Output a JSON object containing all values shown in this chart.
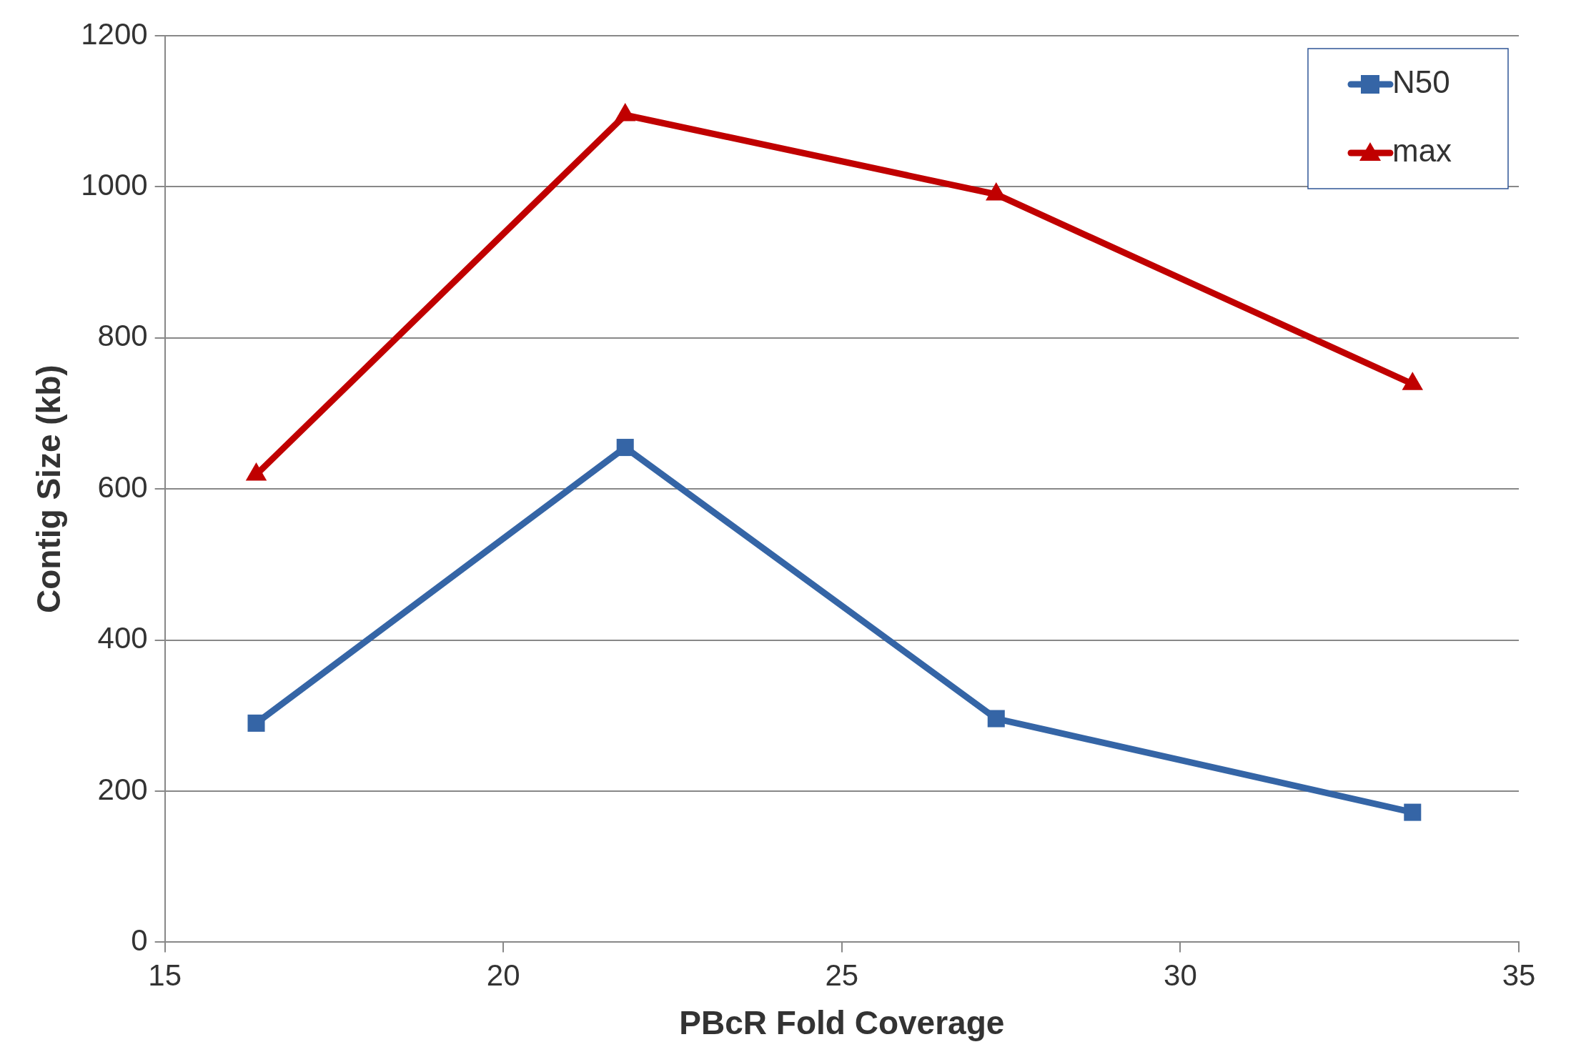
{
  "chart_data": {
    "type": "line",
    "xlabel": "PBcR Fold Coverage",
    "ylabel": "Contig Size (kb)",
    "x": [
      16.35,
      21.8,
      27.28,
      33.43
    ],
    "series": [
      {
        "name": "N50",
        "color": "#3565a6",
        "marker": "square",
        "values": [
          290,
          655,
          296,
          172
        ]
      },
      {
        "name": "max",
        "color": "#c00000",
        "marker": "triangle",
        "values": [
          619,
          1095,
          990,
          739
        ]
      }
    ],
    "xlim": [
      15,
      35
    ],
    "xticks": [
      15,
      20,
      25,
      30,
      35
    ],
    "ylim": [
      0,
      1200
    ],
    "yticks": [
      0,
      200,
      400,
      600,
      800,
      1000,
      1200
    ],
    "grid": "y",
    "legend": "top right",
    "line_style": "solid"
  }
}
